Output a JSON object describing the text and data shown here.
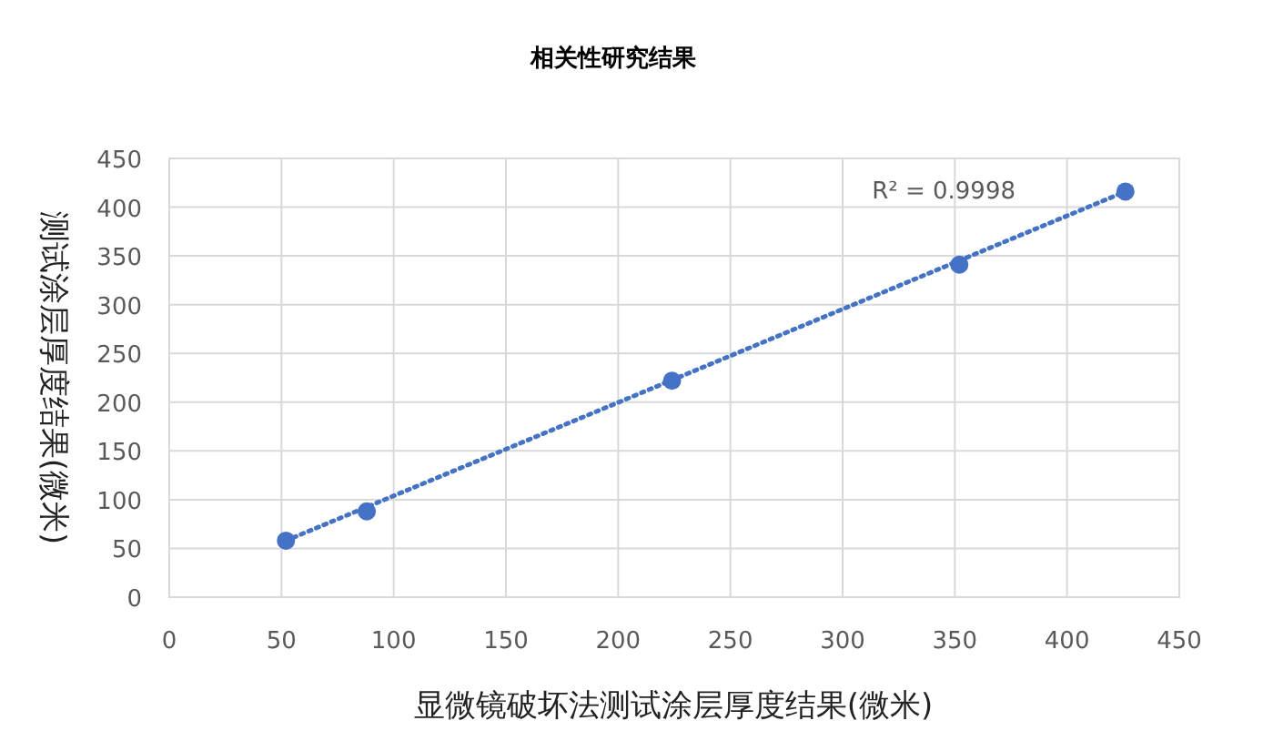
{
  "chart_data": {
    "type": "scatter",
    "title": "相关性研究结果",
    "xlabel": "显微镜破坏法测试涂层厚度结果(微米)",
    "ylabel": "测试涂层厚度结果(微米)",
    "xlim": [
      0,
      450
    ],
    "xticks": [
      0,
      50,
      100,
      150,
      200,
      250,
      300,
      350,
      400,
      450
    ],
    "ylim": [
      0,
      450
    ],
    "yticks": [
      0,
      50,
      100,
      150,
      200,
      250,
      300,
      350,
      400,
      450
    ],
    "grid": true,
    "series": [
      {
        "marker": "circle",
        "color": "#4472c4",
        "x": [
          52,
          88,
          224,
          352,
          426
        ],
        "values": [
          58,
          88,
          222,
          341,
          416
        ]
      },
      {
        "type": "line",
        "color": "#4472c4",
        "line_style": "dotted",
        "marker": "none",
        "x": [
          52,
          426
        ],
        "values": [
          58,
          416
        ]
      }
    ],
    "annotations": [
      "R² = 0.9998"
    ]
  }
}
